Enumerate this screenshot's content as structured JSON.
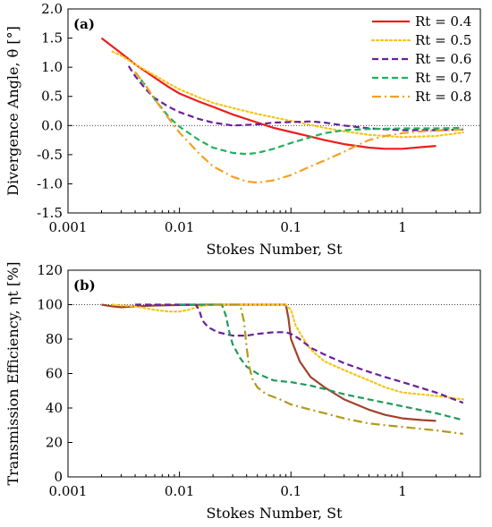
{
  "chart_data": [
    {
      "type": "line",
      "panel_label": "(a)",
      "xlabel": "Stokes Number, St",
      "ylabel": "Divergence Angle, θ [°]",
      "x_scale": "log",
      "xlim": [
        0.001,
        5
      ],
      "ylim": [
        -1.5,
        2.0
      ],
      "x_ticks": [
        {
          "v": 0.001,
          "t": "0.001"
        },
        {
          "v": 0.01,
          "t": "0.01"
        },
        {
          "v": 0.1,
          "t": "0.1"
        },
        {
          "v": 1,
          "t": "1"
        }
      ],
      "y_ticks": [
        {
          "v": 2.0,
          "t": "2.0"
        },
        {
          "v": 1.5,
          "t": "1.5"
        },
        {
          "v": 1.0,
          "t": "1.0"
        },
        {
          "v": 0.5,
          "t": "0.5"
        },
        {
          "v": 0.0,
          "t": "0.0"
        },
        {
          "v": -0.5,
          "t": "-0.5"
        },
        {
          "v": -1.0,
          "t": "-1.0"
        },
        {
          "v": -1.5,
          "t": "-1.5"
        }
      ],
      "reference_line": 0,
      "legend_position": "top-right",
      "grid": false,
      "series": [
        {
          "name": "Rt = 0.4",
          "color": "#ee1c1c",
          "dash": "solid",
          "x": [
            0.002,
            0.003,
            0.004,
            0.006,
            0.008,
            0.01,
            0.015,
            0.02,
            0.03,
            0.05,
            0.07,
            0.1,
            0.15,
            0.2,
            0.3,
            0.5,
            0.7,
            1.0,
            1.5,
            2.0
          ],
          "y": [
            1.5,
            1.24,
            1.05,
            0.82,
            0.66,
            0.55,
            0.41,
            0.32,
            0.19,
            0.05,
            -0.04,
            -0.11,
            -0.19,
            -0.25,
            -0.32,
            -0.38,
            -0.4,
            -0.4,
            -0.37,
            -0.35
          ]
        },
        {
          "name": "Rt = 0.5",
          "color": "#f5c518",
          "dash": "dot",
          "x": [
            0.0025,
            0.003,
            0.004,
            0.006,
            0.008,
            0.01,
            0.015,
            0.02,
            0.03,
            0.05,
            0.07,
            0.1,
            0.15,
            0.2,
            0.3,
            0.5,
            1.0,
            2.0,
            3.5
          ],
          "y": [
            1.27,
            1.2,
            1.05,
            0.86,
            0.72,
            0.62,
            0.48,
            0.39,
            0.3,
            0.2,
            0.14,
            0.08,
            0.01,
            -0.04,
            -0.1,
            -0.16,
            -0.2,
            -0.18,
            -0.12
          ]
        },
        {
          "name": "Rt = 0.6",
          "color": "#6a1f9a",
          "dash": "dash",
          "x": [
            0.0035,
            0.004,
            0.005,
            0.006,
            0.008,
            0.01,
            0.015,
            0.02,
            0.03,
            0.05,
            0.07,
            0.1,
            0.15,
            0.2,
            0.3,
            0.5,
            1.0,
            2.0,
            3.5
          ],
          "y": [
            1.02,
            0.85,
            0.62,
            0.47,
            0.32,
            0.23,
            0.11,
            0.05,
            0.0,
            0.02,
            0.05,
            0.06,
            0.07,
            0.05,
            0.0,
            -0.05,
            -0.08,
            -0.08,
            -0.07
          ]
        },
        {
          "name": "Rt = 0.7",
          "color": "#1fb25a",
          "dash": "dash",
          "x": [
            0.004,
            0.005,
            0.006,
            0.008,
            0.01,
            0.015,
            0.02,
            0.03,
            0.04,
            0.05,
            0.07,
            0.1,
            0.15,
            0.2,
            0.3,
            0.5,
            1.0,
            2.0,
            3.5
          ],
          "y": [
            0.92,
            0.68,
            0.45,
            0.15,
            -0.02,
            -0.25,
            -0.38,
            -0.47,
            -0.49,
            -0.47,
            -0.4,
            -0.3,
            -0.2,
            -0.13,
            -0.08,
            -0.06,
            -0.05,
            -0.05,
            -0.04
          ]
        },
        {
          "name": "Rt = 0.8",
          "color": "#f5a022",
          "dash": "dashdot",
          "x": [
            0.004,
            0.005,
            0.006,
            0.008,
            0.01,
            0.015,
            0.02,
            0.03,
            0.04,
            0.05,
            0.07,
            0.1,
            0.15,
            0.2,
            0.3,
            0.4,
            0.5,
            0.7,
            1.0,
            1.5,
            2.5,
            3.5
          ],
          "y": [
            0.92,
            0.68,
            0.45,
            0.12,
            -0.12,
            -0.48,
            -0.7,
            -0.88,
            -0.96,
            -0.98,
            -0.94,
            -0.85,
            -0.7,
            -0.6,
            -0.45,
            -0.33,
            -0.25,
            -0.18,
            -0.13,
            -0.1,
            -0.08,
            -0.07
          ]
        }
      ]
    },
    {
      "type": "line",
      "panel_label": "(b)",
      "xlabel": "Stokes Number, St",
      "ylabel": "Transmission Efficiency, ηt [%]",
      "x_scale": "log",
      "xlim": [
        0.001,
        5
      ],
      "ylim": [
        0,
        120
      ],
      "x_ticks": [
        {
          "v": 0.001,
          "t": "0.001"
        },
        {
          "v": 0.01,
          "t": "0.01"
        },
        {
          "v": 0.1,
          "t": "0.1"
        },
        {
          "v": 1,
          "t": "1"
        }
      ],
      "y_ticks": [
        {
          "v": 120,
          "t": "120"
        },
        {
          "v": 100,
          "t": "100"
        },
        {
          "v": 80,
          "t": "80"
        },
        {
          "v": 60,
          "t": "60"
        },
        {
          "v": 40,
          "t": "40"
        },
        {
          "v": 20,
          "t": "20"
        },
        {
          "v": 0,
          "t": "0"
        }
      ],
      "reference_line": 100,
      "grid": false,
      "series": [
        {
          "color": "#a0422a",
          "dash": "solid",
          "x": [
            0.002,
            0.0025,
            0.003,
            0.004,
            0.006,
            0.01,
            0.02,
            0.05,
            0.08,
            0.09,
            0.095,
            0.1,
            0.12,
            0.15,
            0.2,
            0.3,
            0.5,
            0.7,
            1.0,
            1.5,
            2.0
          ],
          "y": [
            100,
            99,
            98.5,
            99,
            99.5,
            99.8,
            100,
            100,
            100,
            100,
            92,
            80,
            67,
            58,
            52,
            45,
            39,
            36,
            34,
            33,
            32.5
          ]
        },
        {
          "color": "#f5c518",
          "dash": "dot",
          "x": [
            0.0025,
            0.004,
            0.006,
            0.008,
            0.01,
            0.012,
            0.015,
            0.02,
            0.05,
            0.09,
            0.1,
            0.11,
            0.13,
            0.15,
            0.2,
            0.3,
            0.5,
            0.7,
            1.0,
            2.0,
            3.5
          ],
          "y": [
            100,
            99,
            97,
            96,
            96,
            97,
            99,
            100,
            100,
            100,
            97,
            88,
            80,
            74,
            67,
            62,
            56,
            52,
            49,
            47,
            45
          ]
        },
        {
          "color": "#6a1f9a",
          "dash": "dash",
          "x": [
            0.004,
            0.006,
            0.01,
            0.014,
            0.015,
            0.016,
            0.018,
            0.022,
            0.03,
            0.04,
            0.05,
            0.07,
            0.09,
            0.1,
            0.12,
            0.15,
            0.2,
            0.3,
            0.5,
            0.7,
            1.0,
            2.0,
            3.5
          ],
          "y": [
            100,
            100,
            100,
            100,
            97,
            91,
            87,
            84,
            82,
            82,
            83,
            84,
            84,
            83,
            80,
            75,
            71,
            66,
            61,
            58,
            55,
            49,
            43
          ]
        },
        {
          "color": "#1f9a5a",
          "dash": "dash",
          "x": [
            0.01,
            0.02,
            0.024,
            0.026,
            0.028,
            0.03,
            0.035,
            0.04,
            0.05,
            0.07,
            0.1,
            0.15,
            0.2,
            0.3,
            0.5,
            1.0,
            2.0,
            3.5
          ],
          "y": [
            100,
            100,
            100,
            94,
            84,
            77,
            69,
            64,
            60,
            56,
            55,
            53,
            51,
            48,
            45,
            41,
            37,
            33
          ]
        },
        {
          "color": "#b09a1c",
          "dash": "dashdot",
          "x": [
            0.02,
            0.03,
            0.035,
            0.038,
            0.04,
            0.042,
            0.045,
            0.05,
            0.06,
            0.08,
            0.1,
            0.15,
            0.2,
            0.3,
            0.5,
            1.0,
            2.0,
            3.5
          ],
          "y": [
            100,
            100,
            100,
            90,
            75,
            65,
            57,
            52,
            48,
            45,
            42,
            39,
            37,
            34,
            31,
            29,
            27,
            25
          ]
        }
      ]
    }
  ]
}
